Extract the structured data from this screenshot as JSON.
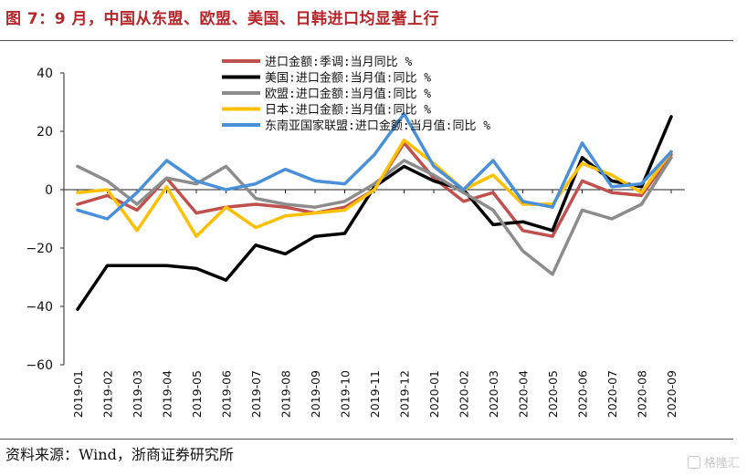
{
  "title": "图 7：9 月，中国从东盟、欧盟、美国、日韩进口均显著上行",
  "source": "资料来源：Wind，浙商证券研究所",
  "watermark": "格隆汇",
  "chart_data": {
    "type": "line",
    "categories": [
      "2019-01",
      "2019-02",
      "2019-03",
      "2019-04",
      "2019-05",
      "2019-06",
      "2019-07",
      "2019-08",
      "2019-09",
      "2019-10",
      "2019-11",
      "2019-12",
      "2020-01",
      "2020-02",
      "2020-03",
      "2020-04",
      "2020-05",
      "2020-06",
      "2020-07",
      "2020-08",
      "2020-09"
    ],
    "ylim": [
      -60,
      40
    ],
    "yticks": [
      40,
      20,
      0,
      -20,
      -40,
      -60
    ],
    "legend_position": "top-center",
    "series": [
      {
        "name": "进口金额:季调:当月同比 %",
        "color": "#c0504d",
        "values": [
          -5,
          -2,
          -7,
          4,
          -8,
          -6,
          -5,
          -6,
          -8,
          -6,
          0,
          16,
          4,
          -4,
          -1,
          -14,
          -16,
          3,
          -1,
          -2,
          12
        ]
      },
      {
        "name": "美国:进口金额:当月值:同比 %",
        "color": "#000000",
        "values": [
          -41,
          -26,
          -26,
          -26,
          -27,
          -31,
          -19,
          -22,
          -16,
          -15,
          1,
          8,
          3,
          0,
          -12,
          -11,
          -14,
          11,
          3,
          1,
          25
        ]
      },
      {
        "name": "欧盟:进口金额:当月值:同比 %",
        "color": "#8c8c8c",
        "values": [
          8,
          3,
          -5,
          4,
          2,
          8,
          -3,
          -5,
          -6,
          -4,
          2,
          10,
          5,
          -1,
          -7,
          -21,
          -29,
          -7,
          -10,
          -5,
          11
        ]
      },
      {
        "name": "日本:进口金额:当月值:同比 %",
        "color": "#ffc000",
        "values": [
          -1,
          0,
          -14,
          1,
          -16,
          -6,
          -13,
          -9,
          -8,
          -7,
          0,
          17,
          9,
          0,
          5,
          -5,
          -5,
          9,
          5,
          -1,
          13
        ]
      },
      {
        "name": "东南亚国家联盟:进口金额:当月值:同比 %",
        "color": "#4a90d9",
        "values": [
          -7,
          -10,
          -1,
          10,
          3,
          0,
          2,
          7,
          3,
          2,
          12,
          26,
          8,
          0,
          10,
          -4,
          -6,
          16,
          1,
          2,
          13
        ]
      }
    ]
  }
}
